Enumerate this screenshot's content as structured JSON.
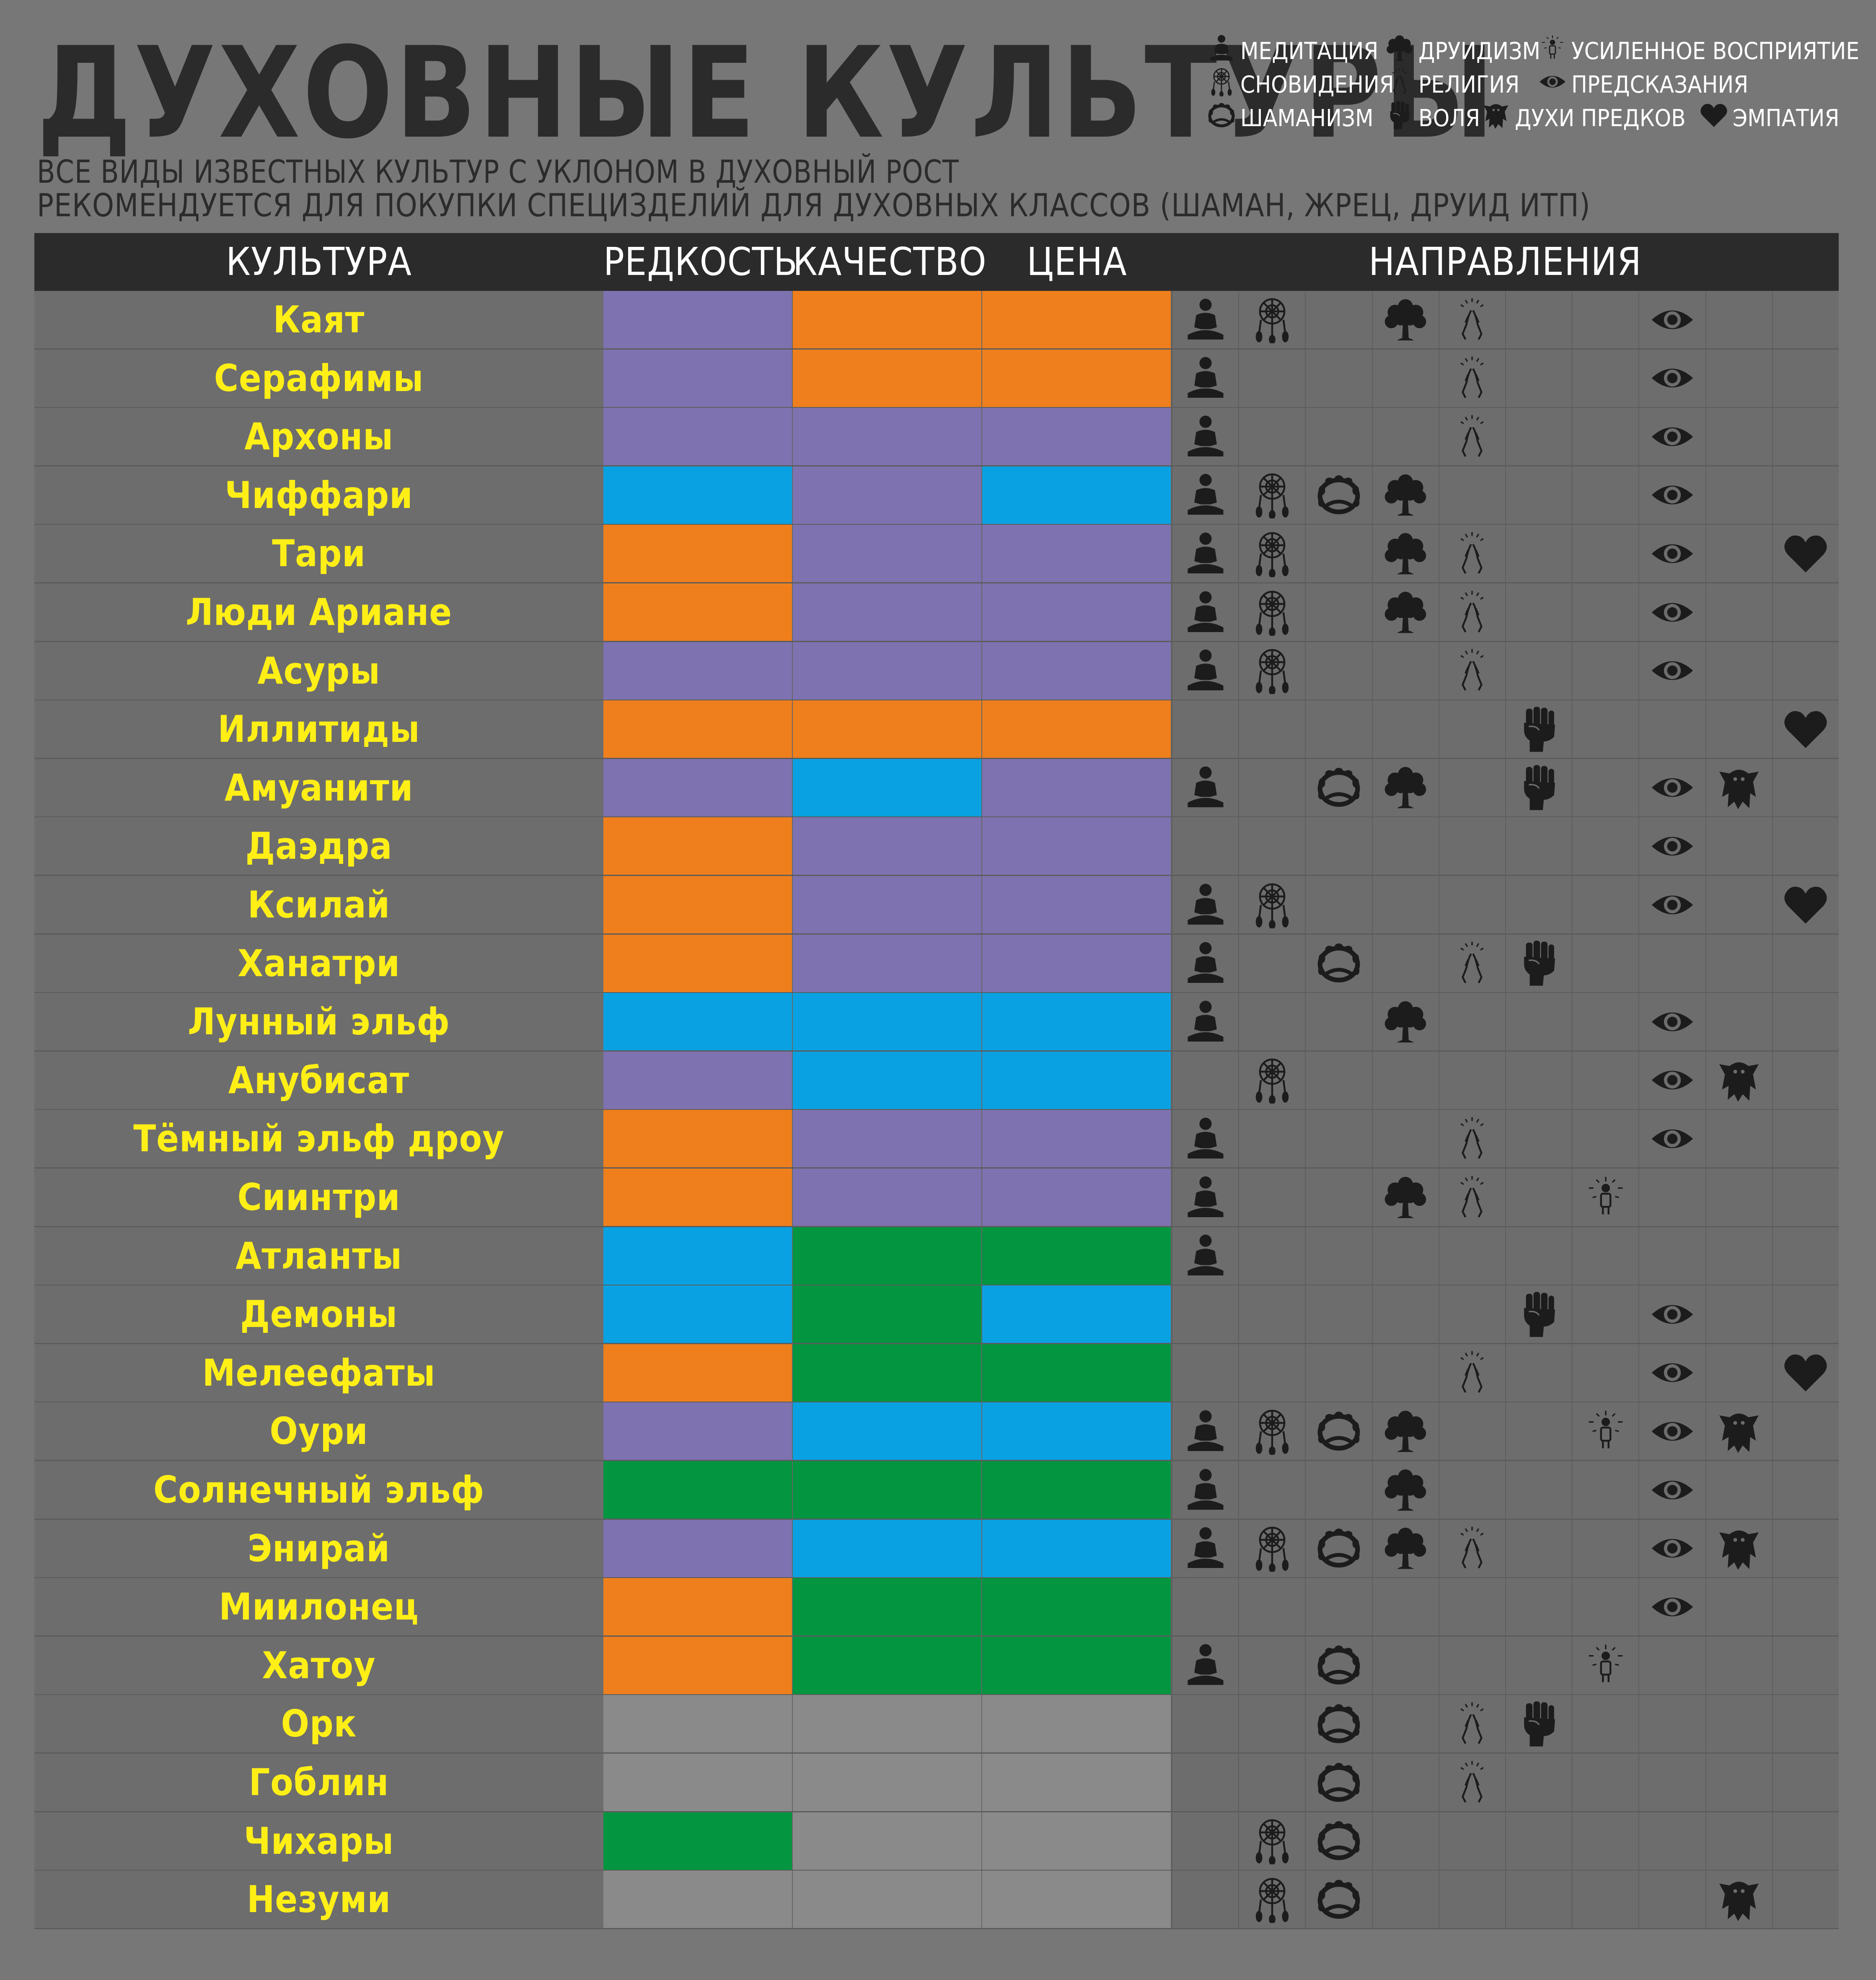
{
  "title": "ДУХОВНЫЕ КУЛЬТУРЫ",
  "subtitle1": "ВСЕ ВИДЫ ИЗВЕСТНЫХ КУЛЬТУР С УКЛОНОМ В ДУХОВНЫЙ РОСТ",
  "subtitle2": "РЕКОМЕНДУЕТСЯ ДЛЯ ПОКУПКИ СПЕЦИЗДЕЛИЙ ДЛЯ ДУХОВНЫХ КЛАССОВ (ШАМАН, ЖРЕЦ, ДРУИД ИТП)",
  "colors": {
    "background": "#777777",
    "header": "#2b2b2b",
    "name_text": "#ffef16",
    "purple": "#7e72b0",
    "orange": "#ee7f1c",
    "blue": "#0aa1e2",
    "green": "#039540",
    "gray": "#8a8a8a"
  },
  "legend": [
    {
      "icon": "meditation-icon",
      "label": "МЕДИТАЦИЯ"
    },
    {
      "icon": "tree-icon",
      "label": "ДРУИДИЗМ"
    },
    {
      "icon": "perception-icon",
      "label": "УСИЛЕННОЕ ВОСПРИЯТИЕ"
    },
    {
      "icon": "dreamcatcher-icon",
      "label": "СНОВИДЕНИЯ"
    },
    {
      "icon": "praying-hands-icon",
      "label": "РЕЛИГИЯ"
    },
    {
      "icon": "eye-icon",
      "label": "ПРЕДСКАЗАНИЯ"
    },
    {
      "icon": "drum-icon",
      "label": "ШАМАНИЗМ"
    },
    {
      "icon": "fist-icon",
      "label": "ВОЛЯ"
    },
    {
      "icon": "ghost-icon",
      "label": "ДУХИ ПРЕДКОВ"
    },
    {
      "icon": "heart-icon",
      "label": "ЭМПАТИЯ"
    }
  ],
  "headers": {
    "culture": "КУЛЬТУРА",
    "rarity": "РЕДКОСТЬ",
    "quality": "КАЧЕСТВО",
    "price": "ЦЕНА",
    "directions": "НАПРАВЛЕНИЯ"
  },
  "direction_columns": [
    "meditation-icon",
    "dreamcatcher-icon",
    "drum-icon",
    "tree-icon",
    "praying-hands-icon",
    "fist-icon",
    "perception-icon",
    "eye-icon",
    "ghost-icon",
    "heart-icon"
  ],
  "rows": [
    {
      "name": "Каят",
      "rarity": "purple",
      "quality": "orange",
      "price": "orange",
      "directions": [
        1,
        1,
        0,
        1,
        1,
        0,
        0,
        1,
        0,
        0
      ]
    },
    {
      "name": "Серафимы",
      "rarity": "purple",
      "quality": "orange",
      "price": "orange",
      "directions": [
        1,
        0,
        0,
        0,
        1,
        0,
        0,
        1,
        0,
        0
      ]
    },
    {
      "name": "Архоны",
      "rarity": "purple",
      "quality": "purple",
      "price": "purple",
      "directions": [
        1,
        0,
        0,
        0,
        1,
        0,
        0,
        1,
        0,
        0
      ]
    },
    {
      "name": "Чиффари",
      "rarity": "blue",
      "quality": "purple",
      "price": "blue",
      "directions": [
        1,
        1,
        1,
        1,
        0,
        0,
        0,
        1,
        0,
        0
      ]
    },
    {
      "name": "Тари",
      "rarity": "orange",
      "quality": "purple",
      "price": "purple",
      "directions": [
        1,
        1,
        0,
        1,
        1,
        0,
        0,
        1,
        0,
        1
      ]
    },
    {
      "name": "Люди Ариане",
      "rarity": "orange",
      "quality": "purple",
      "price": "purple",
      "directions": [
        1,
        1,
        0,
        1,
        1,
        0,
        0,
        1,
        0,
        0
      ]
    },
    {
      "name": "Асуры",
      "rarity": "purple",
      "quality": "purple",
      "price": "purple",
      "directions": [
        1,
        1,
        0,
        0,
        1,
        0,
        0,
        1,
        0,
        0
      ]
    },
    {
      "name": "Иллитиды",
      "rarity": "orange",
      "quality": "orange",
      "price": "orange",
      "directions": [
        0,
        0,
        0,
        0,
        0,
        1,
        0,
        0,
        0,
        1
      ]
    },
    {
      "name": "Амуанити",
      "rarity": "purple",
      "quality": "blue",
      "price": "purple",
      "directions": [
        1,
        0,
        1,
        1,
        0,
        1,
        0,
        1,
        1,
        0
      ]
    },
    {
      "name": "Даэдра",
      "rarity": "orange",
      "quality": "purple",
      "price": "purple",
      "directions": [
        0,
        0,
        0,
        0,
        0,
        0,
        0,
        1,
        0,
        0
      ]
    },
    {
      "name": "Ксилай",
      "rarity": "orange",
      "quality": "purple",
      "price": "purple",
      "directions": [
        1,
        1,
        0,
        0,
        0,
        0,
        0,
        1,
        0,
        1
      ]
    },
    {
      "name": "Ханатри",
      "rarity": "orange",
      "quality": "purple",
      "price": "purple",
      "directions": [
        1,
        0,
        1,
        0,
        1,
        1,
        0,
        0,
        0,
        0
      ]
    },
    {
      "name": "Лунный эльф",
      "rarity": "blue",
      "quality": "blue",
      "price": "blue",
      "directions": [
        1,
        0,
        0,
        1,
        0,
        0,
        0,
        1,
        0,
        0
      ]
    },
    {
      "name": "Анубисат",
      "rarity": "purple",
      "quality": "blue",
      "price": "blue",
      "directions": [
        0,
        1,
        0,
        0,
        0,
        0,
        0,
        1,
        1,
        0
      ]
    },
    {
      "name": "Тёмный эльф дроу",
      "rarity": "orange",
      "quality": "purple",
      "price": "purple",
      "directions": [
        1,
        0,
        0,
        0,
        1,
        0,
        0,
        1,
        0,
        0
      ]
    },
    {
      "name": "Сиинтри",
      "rarity": "orange",
      "quality": "purple",
      "price": "purple",
      "directions": [
        1,
        0,
        0,
        1,
        1,
        0,
        1,
        0,
        0,
        0
      ]
    },
    {
      "name": "Атланты",
      "rarity": "blue",
      "quality": "green",
      "price": "green",
      "directions": [
        1,
        0,
        0,
        0,
        0,
        0,
        0,
        0,
        0,
        0
      ]
    },
    {
      "name": "Демоны",
      "rarity": "blue",
      "quality": "green",
      "price": "blue",
      "directions": [
        0,
        0,
        0,
        0,
        0,
        1,
        0,
        1,
        0,
        0
      ]
    },
    {
      "name": "Мелеефаты",
      "rarity": "orange",
      "quality": "green",
      "price": "green",
      "directions": [
        0,
        0,
        0,
        0,
        1,
        0,
        0,
        1,
        0,
        1
      ]
    },
    {
      "name": "Оури",
      "rarity": "purple",
      "quality": "blue",
      "price": "blue",
      "directions": [
        1,
        1,
        1,
        1,
        0,
        0,
        1,
        1,
        1,
        0
      ]
    },
    {
      "name": "Солнечный эльф",
      "rarity": "green",
      "quality": "green",
      "price": "green",
      "directions": [
        1,
        0,
        0,
        1,
        0,
        0,
        0,
        1,
        0,
        0
      ]
    },
    {
      "name": "Энирай",
      "rarity": "purple",
      "quality": "blue",
      "price": "blue",
      "directions": [
        1,
        1,
        1,
        1,
        1,
        0,
        0,
        1,
        1,
        0
      ]
    },
    {
      "name": "Миилонец",
      "rarity": "orange",
      "quality": "green",
      "price": "green",
      "directions": [
        0,
        0,
        0,
        0,
        0,
        0,
        0,
        1,
        0,
        0
      ]
    },
    {
      "name": "Хатоу",
      "rarity": "orange",
      "quality": "green",
      "price": "green",
      "directions": [
        1,
        0,
        1,
        0,
        0,
        0,
        1,
        0,
        0,
        0
      ]
    },
    {
      "name": "Орк",
      "rarity": "gray",
      "quality": "gray",
      "price": "gray",
      "directions": [
        0,
        0,
        1,
        0,
        1,
        1,
        0,
        0,
        0,
        0
      ]
    },
    {
      "name": "Гоблин",
      "rarity": "gray",
      "quality": "gray",
      "price": "gray",
      "directions": [
        0,
        0,
        1,
        0,
        1,
        0,
        0,
        0,
        0,
        0
      ]
    },
    {
      "name": "Чихары",
      "rarity": "green",
      "quality": "gray",
      "price": "gray",
      "directions": [
        0,
        1,
        1,
        0,
        0,
        0,
        0,
        0,
        0,
        0
      ]
    },
    {
      "name": "Незуми",
      "rarity": "gray",
      "quality": "gray",
      "price": "gray",
      "directions": [
        0,
        1,
        1,
        0,
        0,
        0,
        0,
        0,
        1,
        0
      ]
    }
  ]
}
